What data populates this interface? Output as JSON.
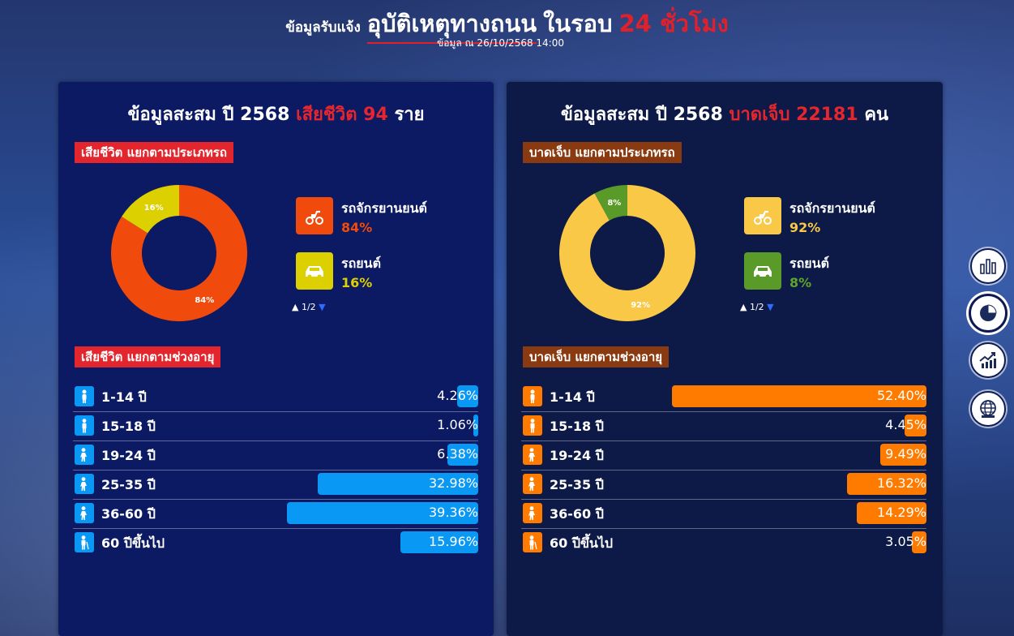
{
  "header": {
    "prefix": "ข้อมูลรับแจ้ง",
    "main": "อุบัติเหตุทางถนน",
    "round": "ในรอบ",
    "hours": "24 ชั่วโมง",
    "subtitle": "ข้อมูล ณ 26/10/2568 14:00"
  },
  "left": {
    "head_prefix": "ข้อมูลสะสม ปี 2568",
    "head_metric": "เสียชีวิต 94",
    "head_unit": "ราย",
    "type_tag": "เสียชีวิต แยกตามประเภทรถ",
    "age_tag": "เสียชีวิต แยกตามช่วงอายุ",
    "pager": "1/2",
    "legend": [
      {
        "name": "รถจักรยานยนต์",
        "pct": "84%",
        "value": 84,
        "color": "#f04a0c",
        "text_color": "#f04a0c",
        "icon": "motorcycle-icon"
      },
      {
        "name": "รถยนต์",
        "pct": "16%",
        "value": 16,
        "color": "#dcd000",
        "text_color": "#dcd000",
        "icon": "car-icon"
      }
    ],
    "donut_labels": [
      "84%",
      "16%"
    ],
    "bar_color": "#0a98f5",
    "icon_color": "#0a98f5",
    "ages": [
      {
        "label": "1-14 ปี",
        "value": 4.26,
        "text": "4.26%",
        "icon": "child-icon"
      },
      {
        "label": "15-18 ปี",
        "value": 1.06,
        "text": "1.06%",
        "icon": "teen-icon"
      },
      {
        "label": "19-24 ปี",
        "value": 6.38,
        "text": "6.38%",
        "icon": "adult-icon"
      },
      {
        "label": "25-35 ปี",
        "value": 32.98,
        "text": "32.98%",
        "icon": "adult-icon"
      },
      {
        "label": "36-60 ปี",
        "value": 39.36,
        "text": "39.36%",
        "icon": "adult-icon"
      },
      {
        "label": "60 ปีขึ้นไป",
        "value": 15.96,
        "text": "15.96%",
        "icon": "elder-icon"
      }
    ]
  },
  "right": {
    "head_prefix": "ข้อมูลสะสม ปี 2568",
    "head_metric": "บาดเจ็บ 22181",
    "head_unit": "คน",
    "type_tag": "บาดเจ็บ แยกตามประเภทรถ",
    "age_tag": "บาดเจ็บ แยกตามช่วงอายุ",
    "pager": "1/2",
    "legend": [
      {
        "name": "รถจักรยานยนต์",
        "pct": "92%",
        "value": 92,
        "color": "#f8c846",
        "text_color": "#f8c846",
        "icon": "motorcycle-icon"
      },
      {
        "name": "รถยนต์",
        "pct": "8%",
        "value": 8,
        "color": "#5a9a28",
        "text_color": "#5fa52a",
        "icon": "car-icon"
      }
    ],
    "donut_labels": [
      "92%",
      "8%"
    ],
    "bar_color": "#ff7b00",
    "icon_color": "#ff7b00",
    "ages": [
      {
        "label": "1-14 ปี",
        "value": 52.4,
        "text": "52.40%",
        "icon": "child-icon"
      },
      {
        "label": "15-18 ปี",
        "value": 4.45,
        "text": "4.45%",
        "icon": "teen-icon"
      },
      {
        "label": "19-24 ปี",
        "value": 9.49,
        "text": "9.49%",
        "icon": "adult-icon"
      },
      {
        "label": "25-35 ปี",
        "value": 16.32,
        "text": "16.32%",
        "icon": "adult-icon"
      },
      {
        "label": "36-60 ปี",
        "value": 14.29,
        "text": "14.29%",
        "icon": "adult-icon"
      },
      {
        "label": "60 ปีขึ้นไป",
        "value": 3.05,
        "text": "3.05%",
        "icon": "elder-icon"
      }
    ]
  },
  "side_buttons": [
    {
      "icon": "bar-chart-icon",
      "active": false
    },
    {
      "icon": "pie-chart-icon",
      "active": true
    },
    {
      "icon": "trend-chart-icon",
      "active": false
    },
    {
      "icon": "globe-icon",
      "active": false
    }
  ]
}
